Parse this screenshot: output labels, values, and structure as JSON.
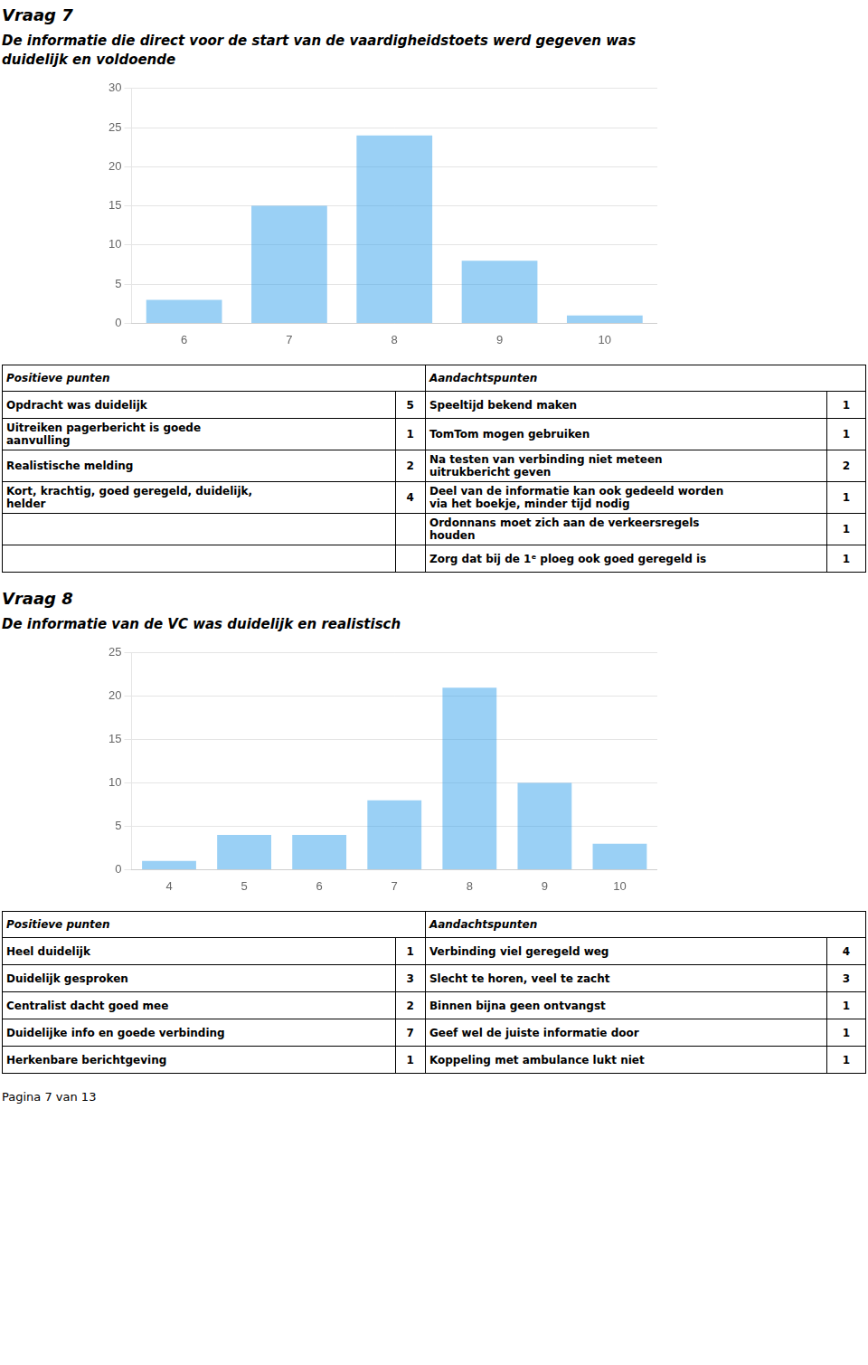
{
  "chart_data": [
    {
      "type": "bar",
      "title": "Vraag 7",
      "subtitle": "De informatie die direct voor de start van de vaardigheidstoets werd gegeven was\nduidelijk en voldoende",
      "categories": [
        "6",
        "7",
        "8",
        "9",
        "10"
      ],
      "values": [
        3,
        15,
        24,
        8,
        1
      ],
      "ylim": [
        0,
        30
      ],
      "yticks": [
        0,
        5,
        10,
        15,
        20,
        25,
        30
      ],
      "grid": true,
      "table": {
        "headers": [
          "Positieve punten",
          "Aandachtspunten"
        ],
        "left_rows": [
          {
            "text": "Opdracht was duidelijk",
            "count": 5
          },
          {
            "text": "Uitreiken pagerbericht is goede\naanvulling",
            "count": 1
          },
          {
            "text": "Realistische melding",
            "count": 2
          },
          {
            "text": "Kort, krachtig, goed geregeld, duidelijk,\nhelder",
            "count": 4
          }
        ],
        "right_rows": [
          {
            "text": "Speeltijd bekend maken",
            "count": 1
          },
          {
            "text": "TomTom mogen gebruiken",
            "count": 1
          },
          {
            "text": "Na testen van verbinding niet meteen\nuitrukbericht geven",
            "count": 2
          },
          {
            "text": "Deel van de informatie kan ook gedeeld worden\nvia het boekje, minder tijd nodig",
            "count": 1
          },
          {
            "text": "Ordonnans moet zich aan de verkeersregels\nhouden",
            "count": 1
          },
          {
            "text": "Zorg dat bij de 1ᵉ ploeg ook goed geregeld is",
            "count": 1
          }
        ]
      }
    },
    {
      "type": "bar",
      "title": "Vraag 8",
      "subtitle": "De informatie van de VC was duidelijk en realistisch",
      "categories": [
        "4",
        "5",
        "6",
        "7",
        "8",
        "9",
        "10"
      ],
      "values": [
        1,
        4,
        4,
        8,
        21,
        10,
        3
      ],
      "ylim": [
        0,
        25
      ],
      "yticks": [
        0,
        5,
        10,
        15,
        20,
        25
      ],
      "grid": true,
      "table": {
        "headers": [
          "Positieve punten",
          "Aandachtspunten"
        ],
        "left_rows": [
          {
            "text": "Heel duidelijk",
            "count": 1
          },
          {
            "text": "Duidelijk gesproken",
            "count": 3
          },
          {
            "text": "Centralist dacht goed mee",
            "count": 2
          },
          {
            "text": "Duidelijke info en goede verbinding",
            "count": 7
          },
          {
            "text": "Herkenbare berichtgeving",
            "count": 1
          }
        ],
        "right_rows": [
          {
            "text": "Verbinding viel geregeld weg",
            "count": 4
          },
          {
            "text": "Slecht te horen, veel te zacht",
            "count": 3
          },
          {
            "text": "Binnen bijna geen ontvangst",
            "count": 1
          },
          {
            "text": "Geef wel de juiste informatie door",
            "count": 1
          },
          {
            "text": "Koppeling met ambulance lukt niet",
            "count": 1
          }
        ]
      }
    }
  ],
  "footer": "Pagina 7 van 13"
}
